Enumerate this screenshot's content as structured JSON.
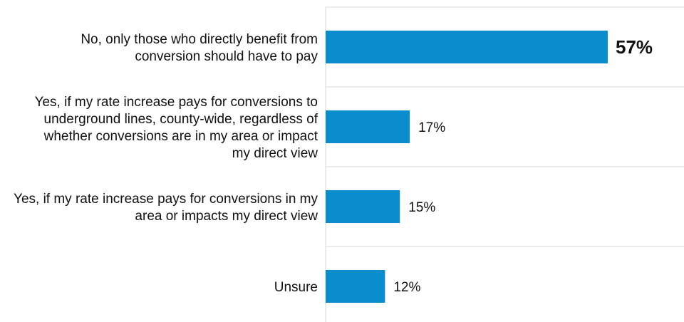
{
  "chart_data": {
    "type": "bar",
    "orientation": "horizontal",
    "title": "",
    "xlabel": "",
    "ylabel": "",
    "xlim": [
      0,
      100
    ],
    "grid": true,
    "legend": "none",
    "bar_color": "#0b8ccc",
    "highlight_index": 0,
    "categories": [
      [
        "No, only those who directly benefit from",
        "conversion should have to pay"
      ],
      [
        "Yes, if my rate increase pays for conversions to",
        "underground lines, county-wide, regardless of",
        "whether conversions are in my area or impact",
        "my direct view"
      ],
      [
        "Yes, if my rate increase pays for conversions in my",
        "area or impacts my direct view"
      ],
      [
        "Unsure"
      ]
    ],
    "values": [
      57,
      17,
      15,
      12
    ],
    "value_labels": [
      "57%",
      "17%",
      "15%",
      "12%"
    ]
  }
}
